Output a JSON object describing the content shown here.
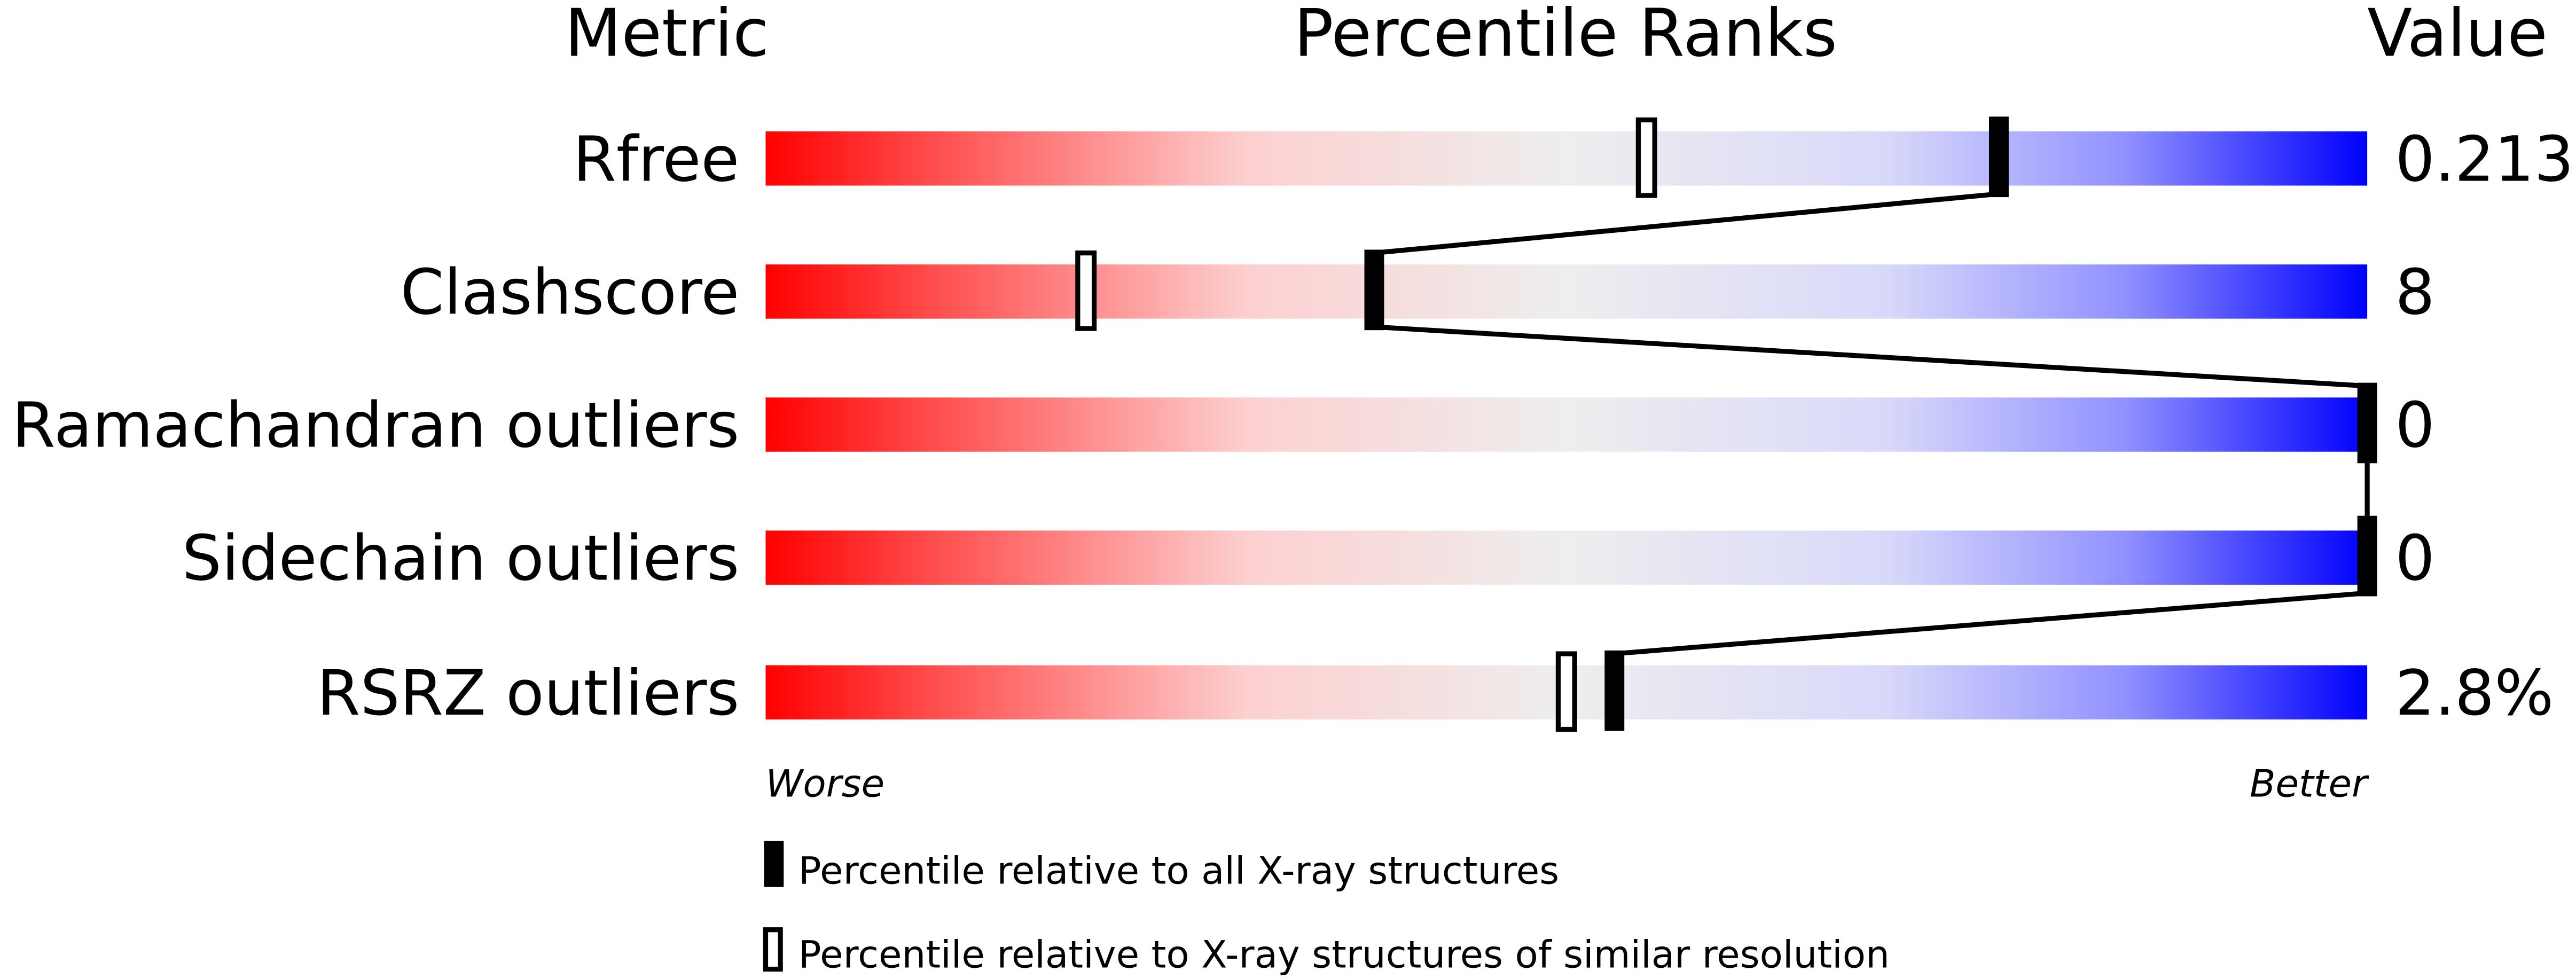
{
  "chart_data": {
    "type": "table",
    "headers": {
      "metric": "Metric",
      "ranks": "Percentile Ranks",
      "value": "Value"
    },
    "metrics": [
      {
        "name": "Rfree",
        "value": "0.213",
        "percentile_all": 77,
        "percentile_similar": 55
      },
      {
        "name": "Clashscore",
        "value": "8",
        "percentile_all": 38,
        "percentile_similar": 20
      },
      {
        "name": "Ramachandran outliers",
        "value": "0",
        "percentile_all": 100,
        "percentile_similar": null
      },
      {
        "name": "Sidechain outliers",
        "value": "0",
        "percentile_all": 100,
        "percentile_similar": null
      },
      {
        "name": "RSRZ outliers",
        "value": "2.8%",
        "percentile_all": 53,
        "percentile_similar": 50
      }
    ],
    "axis": {
      "worse": "Worse",
      "better": "Better",
      "range": [
        0,
        100
      ]
    },
    "legend": {
      "all": "Percentile relative to all X-ray structures",
      "similar": "Percentile relative to X-ray structures of similar resolution"
    },
    "colors": {
      "worse": "#ff0000",
      "middle": "#f0f0f0",
      "better": "#0000ff"
    }
  }
}
